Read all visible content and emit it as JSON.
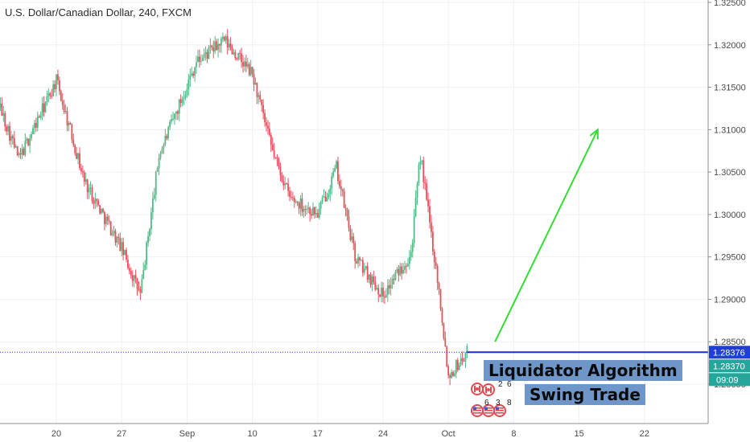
{
  "header": {
    "title": "U.S. Dollar/Canadian Dollar, 240, FXCM"
  },
  "chart_data": {
    "type": "candlestick",
    "title": "U.S. Dollar/Canadian Dollar, 240, FXCM",
    "symbol": "USDCAD",
    "interval": "240",
    "source": "FXCM",
    "ylim": [
      1.2745,
      1.3255
    ],
    "y_ticks": [
      "1.32500",
      "1.32000",
      "1.31500",
      "1.31000",
      "1.30500",
      "1.30000",
      "1.29500",
      "1.29000",
      "1.28500",
      "1.28000"
    ],
    "y_tick_values": [
      1.325,
      1.32,
      1.315,
      1.31,
      1.305,
      1.3,
      1.295,
      1.29,
      1.285,
      1.28
    ],
    "x_ticks": [
      "20",
      "27",
      "Sep",
      "10",
      "17",
      "24",
      "Oct",
      "8",
      "15",
      "22"
    ],
    "colors": {
      "up": "#53b987",
      "down": "#eb4d5c",
      "arrow": "#33dd33",
      "price_line": "#1c2bd8",
      "badge_current": "#1f3fd6",
      "badge_last": "#26a69a"
    },
    "anchors": [
      {
        "date": "2018-08-13",
        "price": 1.3155
      },
      {
        "date": "2018-08-16",
        "price": 1.3065
      },
      {
        "date": "2018-08-20",
        "price": 1.3158
      },
      {
        "date": "2018-08-23",
        "price": 1.304
      },
      {
        "date": "2018-08-27",
        "price": 1.296
      },
      {
        "date": "2018-08-29",
        "price": 1.2905
      },
      {
        "date": "2018-08-31",
        "price": 1.307
      },
      {
        "date": "2018-09-04",
        "price": 1.318
      },
      {
        "date": "2018-09-07",
        "price": 1.3205
      },
      {
        "date": "2018-09-10",
        "price": 1.3165
      },
      {
        "date": "2018-09-12",
        "price": 1.308
      },
      {
        "date": "2018-09-14",
        "price": 1.302
      },
      {
        "date": "2018-09-17",
        "price": 1.3
      },
      {
        "date": "2018-09-19",
        "price": 1.3055
      },
      {
        "date": "2018-09-21",
        "price": 1.295
      },
      {
        "date": "2018-09-24",
        "price": 1.2905
      },
      {
        "date": "2018-09-27",
        "price": 1.2955
      },
      {
        "date": "2018-09-28",
        "price": 1.307
      },
      {
        "date": "2018-09-30",
        "price": 1.291
      },
      {
        "date": "2018-10-01",
        "price": 1.281
      },
      {
        "date": "2018-10-03",
        "price": 1.2837
      }
    ],
    "current_price": "1.28376",
    "last_price": "1.28370",
    "countdown": "09:09",
    "arrow": {
      "from": {
        "date": "2018-10-06",
        "price": 1.285
      },
      "to": {
        "date": "2018-10-17",
        "price": 1.31
      }
    },
    "annotations": [
      "Liquidator Algorithm",
      "Swing Trade"
    ]
  },
  "flags": {
    "numbers": [
      "2",
      "6",
      "6",
      "3",
      "8"
    ]
  }
}
